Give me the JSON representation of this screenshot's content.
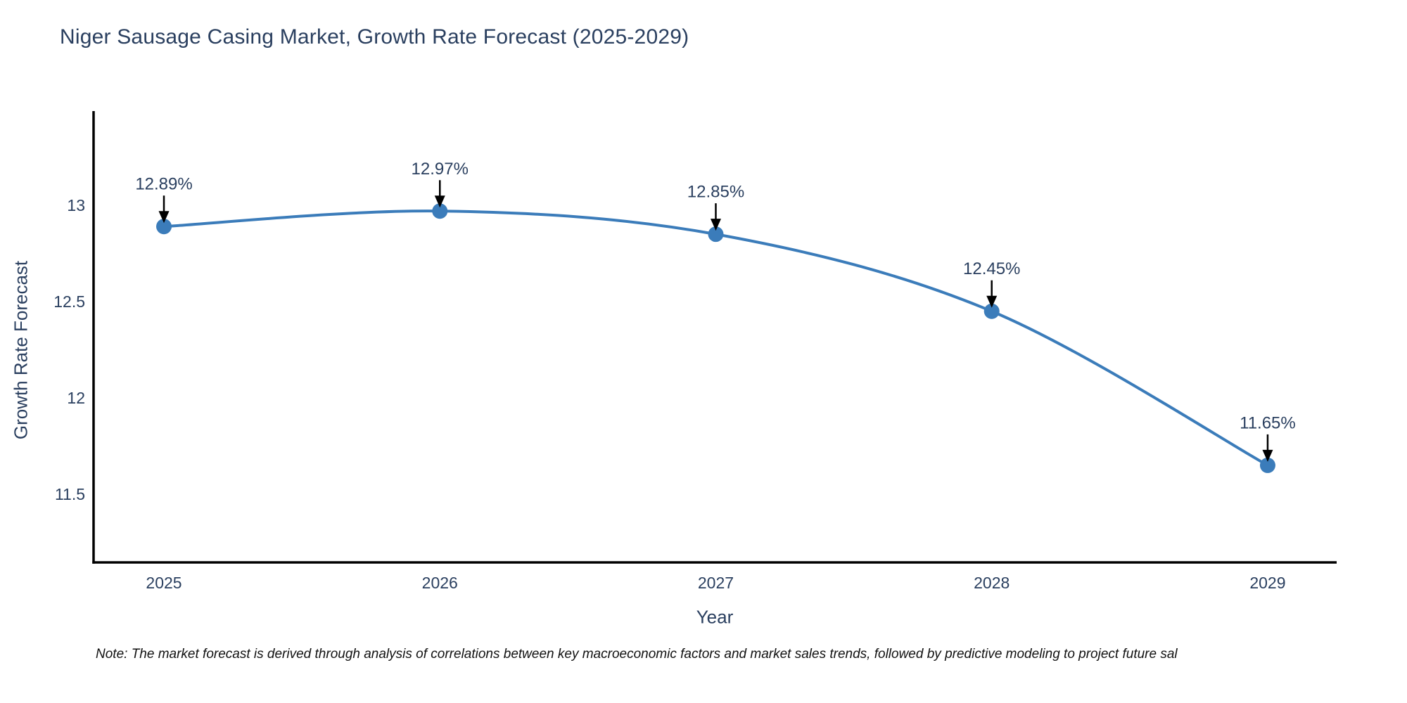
{
  "figure": {
    "title": "Niger Sausage Casing Market, Growth Rate Forecast (2025-2029)",
    "note": "Note: The market forecast is derived through analysis of correlations between key macroeconomic factors and market sales trends, followed by predictive modeling to project future sal"
  },
  "chart_data": {
    "type": "line",
    "title": "Niger Sausage Casing Market, Growth Rate Forecast (2025-2029)",
    "xlabel": "Year",
    "ylabel": "Growth Rate Forecast",
    "x": [
      2025,
      2026,
      2027,
      2028,
      2029
    ],
    "series": [
      {
        "name": "Growth Rate Forecast",
        "values": [
          12.89,
          12.97,
          12.85,
          12.45,
          11.65
        ],
        "point_labels": [
          "12.89%",
          "12.97%",
          "12.85%",
          "12.45%",
          "11.65%"
        ]
      }
    ],
    "x_tick_labels": [
      "2025",
      "2026",
      "2027",
      "2028",
      "2029"
    ],
    "y_ticks": [
      11.5,
      12,
      12.5,
      13
    ],
    "y_tick_labels": [
      "11.5",
      "12",
      "12.5",
      "13"
    ],
    "xlim": [
      2024.745,
      2029.25
    ],
    "ylim": [
      11.146,
      13.482
    ],
    "grid": false,
    "legend": "none",
    "line_shape": "spline",
    "markers": true,
    "colors": {
      "line": "#3b7cba",
      "marker": "#3b7cba",
      "axis_line": "#000000",
      "tick_text": "#2a3f5f",
      "annotation_text": "#2a3f5f",
      "annotation_arrow": "#000000",
      "background": "#ffffff"
    }
  }
}
